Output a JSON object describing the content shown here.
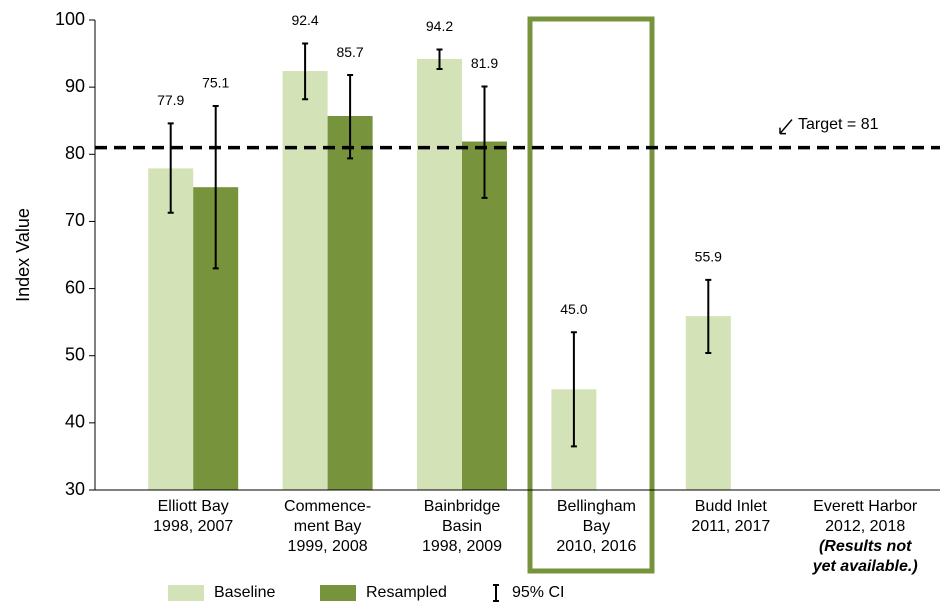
{
  "chart_data": {
    "type": "bar",
    "y_label": "Index Value",
    "categories": [
      [
        "Elliott Bay",
        "1998, 2007"
      ],
      [
        "Commence-",
        "ment Bay",
        "1999, 2008"
      ],
      [
        "Bainbridge",
        "Basin",
        "1998, 2009"
      ],
      [
        "Bellingham",
        "Bay",
        "2010, 2016"
      ],
      [
        "Budd Inlet",
        "2011, 2017"
      ],
      [
        "Everett Harbor",
        "2012, 2018"
      ]
    ],
    "note": [
      "(Results not",
      "yet available.)"
    ],
    "series": [
      {
        "name": "Baseline",
        "color": "#d4e3b7",
        "values": [
          77.9,
          92.4,
          94.2,
          45.0,
          55.9,
          null
        ],
        "value_labels": [
          "77.9",
          "92.4",
          "94.2",
          "45.0",
          "55.9",
          null
        ],
        "ci_low": [
          71.3,
          88.2,
          92.7,
          36.5,
          50.4,
          null
        ],
        "ci_high": [
          84.6,
          96.5,
          95.6,
          53.5,
          61.3,
          null
        ]
      },
      {
        "name": "Resampled",
        "color": "#77933c",
        "values": [
          75.1,
          85.7,
          81.9,
          null,
          null,
          null
        ],
        "value_labels": [
          "75.1",
          "85.7",
          "81.9",
          null,
          null,
          null
        ],
        "ci_low": [
          63.0,
          79.4,
          73.5,
          null,
          null,
          null
        ],
        "ci_high": [
          87.2,
          91.8,
          90.1,
          null,
          null,
          null
        ]
      }
    ],
    "ci_label": "95% CI",
    "target": 81,
    "target_label": "Target = 81",
    "ylim": [
      30,
      100
    ],
    "yticks": [
      30,
      40,
      50,
      60,
      70,
      80,
      90,
      100
    ],
    "grid": false
  }
}
